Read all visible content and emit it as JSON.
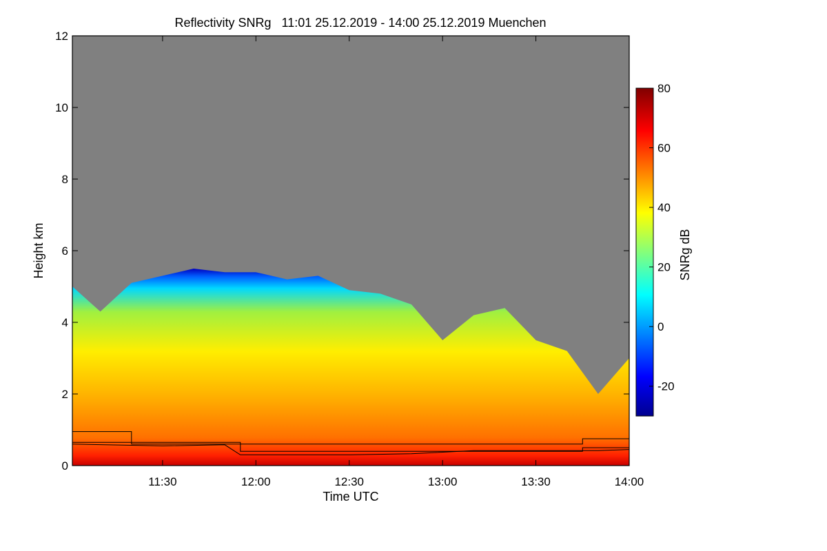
{
  "chart_data": {
    "type": "heatmap",
    "title": "Reflectivity SNRg   11:01 25.12.2019 - 14:00 25.12.2019 Muenchen",
    "xlabel": "Time UTC",
    "ylabel": "Height km",
    "xlim": [
      "11:01",
      "14:00"
    ],
    "ylim": [
      0,
      12
    ],
    "x_ticks": [
      "11:30",
      "12:00",
      "12:30",
      "13:00",
      "13:30",
      "14:00"
    ],
    "y_ticks": [
      "0",
      "2",
      "4",
      "6",
      "8",
      "10",
      "12"
    ],
    "colorbar": {
      "label": "SNRg dB",
      "range": [
        -30,
        80
      ],
      "ticks": [
        "-20",
        "0",
        "20",
        "40",
        "60",
        "80"
      ],
      "colormap": "jet"
    },
    "background_no_signal_color": "#808080",
    "echo_top_km": [
      [
        "11:01",
        5.0
      ],
      [
        "11:10",
        4.3
      ],
      [
        "11:20",
        5.1
      ],
      [
        "11:30",
        5.3
      ],
      [
        "11:40",
        5.5
      ],
      [
        "11:50",
        5.4
      ],
      [
        "12:00",
        5.4
      ],
      [
        "12:10",
        5.2
      ],
      [
        "12:20",
        5.3
      ],
      [
        "12:30",
        4.9
      ],
      [
        "12:40",
        4.8
      ],
      [
        "12:50",
        4.5
      ],
      [
        "13:00",
        3.5
      ],
      [
        "13:10",
        4.2
      ],
      [
        "13:20",
        4.4
      ],
      [
        "13:30",
        3.5
      ],
      [
        "13:40",
        3.2
      ],
      [
        "13:50",
        2.0
      ],
      [
        "14:00",
        3.0
      ]
    ],
    "series": [
      {
        "points": [
          [
            "11:01",
            0.95
          ],
          [
            "11:20",
            0.95
          ],
          [
            "11:20",
            0.6
          ],
          [
            "13:45",
            0.6
          ],
          [
            "13:45",
            0.75
          ],
          [
            "14:00",
            0.75
          ]
        ]
      },
      {
        "points": [
          [
            "11:01",
            0.6
          ],
          [
            "11:30",
            0.55
          ],
          [
            "11:50",
            0.58
          ],
          [
            "11:55",
            0.3
          ],
          [
            "12:30",
            0.3
          ],
          [
            "12:50",
            0.33
          ],
          [
            "13:10",
            0.42
          ],
          [
            "13:30",
            0.42
          ],
          [
            "13:50",
            0.42
          ],
          [
            "14:00",
            0.45
          ]
        ]
      },
      {
        "points": [
          [
            "11:01",
            0.65
          ],
          [
            "11:55",
            0.65
          ],
          [
            "11:55",
            0.4
          ],
          [
            "13:45",
            0.4
          ],
          [
            "13:45",
            0.5
          ],
          [
            "14:00",
            0.5
          ]
        ]
      }
    ]
  }
}
